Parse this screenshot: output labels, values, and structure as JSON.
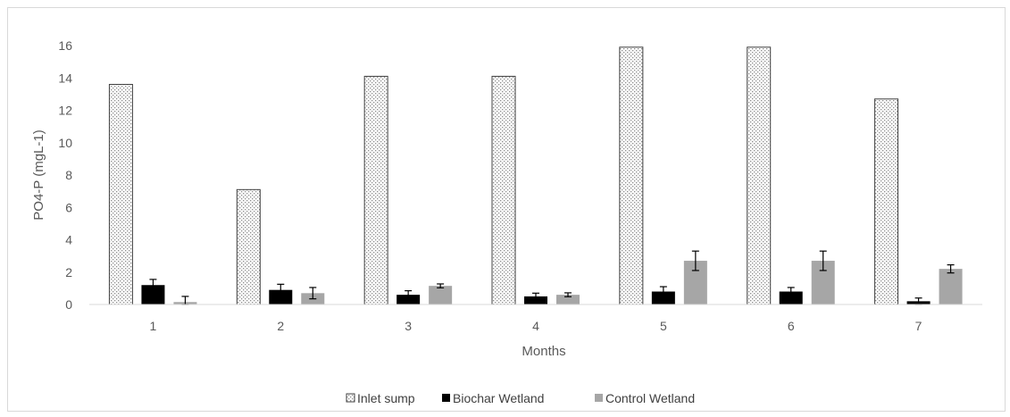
{
  "chart_data": {
    "type": "bar",
    "categories": [
      "1",
      "2",
      "3",
      "4",
      "5",
      "6",
      "7"
    ],
    "series": [
      {
        "name": "Inlet sump",
        "values": [
          13.6,
          7.1,
          14.1,
          14.1,
          15.9,
          15.9,
          12.7
        ],
        "errors": [
          0,
          0,
          0,
          0,
          0,
          0,
          0
        ],
        "fill": "pattern",
        "color": "#d9d9d9"
      },
      {
        "name": "Biochar Wetland",
        "values": [
          1.2,
          0.9,
          0.6,
          0.5,
          0.8,
          0.8,
          0.2
        ],
        "errors": [
          0.35,
          0.35,
          0.25,
          0.2,
          0.3,
          0.25,
          0.2
        ],
        "fill": "solid",
        "color": "#000000"
      },
      {
        "name": "Control Wetland",
        "values": [
          0.15,
          0.7,
          1.15,
          0.6,
          2.7,
          2.7,
          2.2
        ],
        "errors": [
          0.35,
          0.35,
          0.12,
          0.12,
          0.6,
          0.6,
          0.25
        ],
        "fill": "solid",
        "color": "#a6a6a6"
      }
    ],
    "title": "",
    "xlabel": "Months",
    "ylabel": "PO4-P (mgL-1)",
    "ylim": [
      0,
      16
    ],
    "yticks": [
      "0",
      "2",
      "4",
      "6",
      "8",
      "10",
      "12",
      "14",
      "16"
    ],
    "grid": false,
    "legend_position": "bottom"
  }
}
